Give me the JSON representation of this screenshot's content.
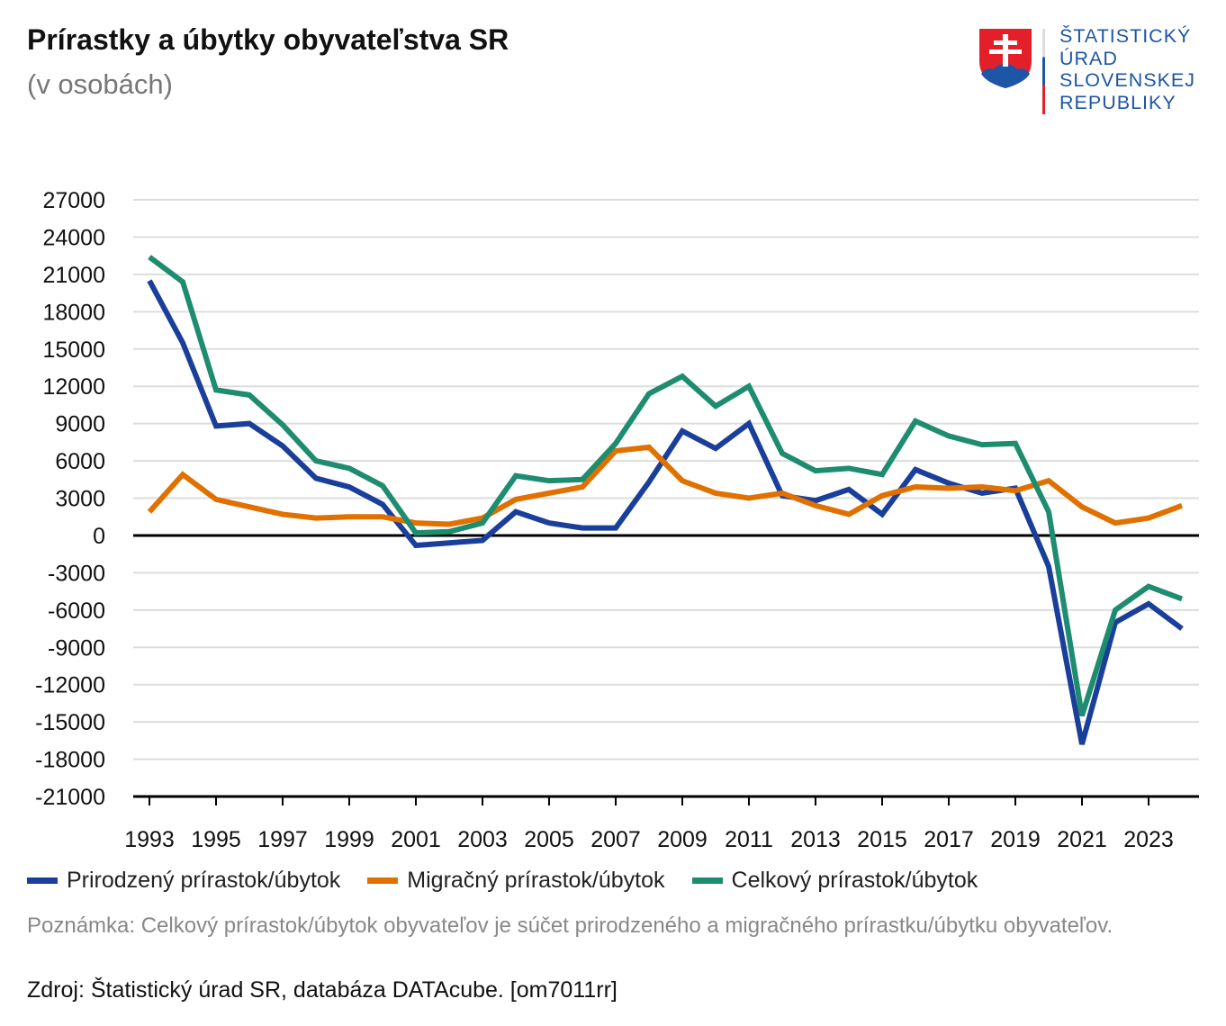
{
  "title": "Prírastky a úbytky obyvateľstva SR",
  "subtitle": "(v osobách)",
  "logo": {
    "lines": [
      "ŠTATISTICKÝ",
      "ÚRAD",
      "SLOVENSKEJ",
      "REPUBLIKY"
    ]
  },
  "note": "Poznámka: Celkový prírastok/úbytok obyvateľov je súčet prirodzeného a migračného prírastku/úbytku obyvateľov.",
  "source": "Zdroj: Štatistický úrad SR, databáza DATAcube. [om7011rr]",
  "chart_data": {
    "type": "line",
    "title": "Prírastky a úbytky obyvateľstva SR",
    "xlabel": "",
    "ylabel": "",
    "ylim": [
      -21000,
      27000
    ],
    "yticks": [
      "27000",
      "24000",
      "21000",
      "18000",
      "15000",
      "12000",
      "9000",
      "6000",
      "3000",
      "0",
      "-3000",
      "-6000",
      "-9000",
      "-12000",
      "-15000",
      "-18000",
      "-21000"
    ],
    "xtick_labels": [
      "1993",
      "1995",
      "1997",
      "1999",
      "2001",
      "2003",
      "2005",
      "2007",
      "2009",
      "2011",
      "2013",
      "2015",
      "2017",
      "2019",
      "2021",
      "2023"
    ],
    "grid": true,
    "legend_position": "bottom",
    "x": [
      1993,
      1994,
      1995,
      1996,
      1997,
      1998,
      1999,
      2000,
      2001,
      2002,
      2003,
      2004,
      2005,
      2006,
      2007,
      2008,
      2009,
      2010,
      2011,
      2012,
      2013,
      2014,
      2015,
      2016,
      2017,
      2018,
      2019,
      2020,
      2021,
      2022,
      2023,
      2024
    ],
    "series": [
      {
        "name": "Prirodzený prírastok/úbytok",
        "color": "#1a3f9b",
        "values": [
          20500,
          15500,
          8800,
          9000,
          7200,
          4600,
          3900,
          2500,
          -800,
          -600,
          -400,
          1900,
          1000,
          600,
          600,
          4300,
          8400,
          7000,
          9000,
          3200,
          2800,
          3700,
          1700,
          5300,
          4200,
          3400,
          3800,
          -2500,
          -16800,
          -7000,
          -5500,
          -7500
        ]
      },
      {
        "name": "Migračný prírastok/úbytok",
        "color": "#e07000",
        "values": [
          1900,
          4900,
          2900,
          2300,
          1700,
          1400,
          1500,
          1500,
          1000,
          900,
          1400,
          2900,
          3400,
          3900,
          6800,
          7100,
          4400,
          3400,
          3000,
          3400,
          2400,
          1700,
          3200,
          3900,
          3800,
          3900,
          3600,
          4400,
          2300,
          1000,
          1400,
          2400
        ]
      },
      {
        "name": "Celkový prírastok/úbytok",
        "color": "#1e8c6e",
        "values": [
          22400,
          20400,
          11700,
          11300,
          8900,
          6000,
          5400,
          4000,
          200,
          300,
          1000,
          4800,
          4400,
          4500,
          7400,
          11400,
          12800,
          10400,
          12000,
          6600,
          5200,
          5400,
          4900,
          9200,
          8000,
          7300,
          7400,
          1900,
          -14500,
          -6000,
          -4100,
          -5100
        ]
      }
    ]
  }
}
